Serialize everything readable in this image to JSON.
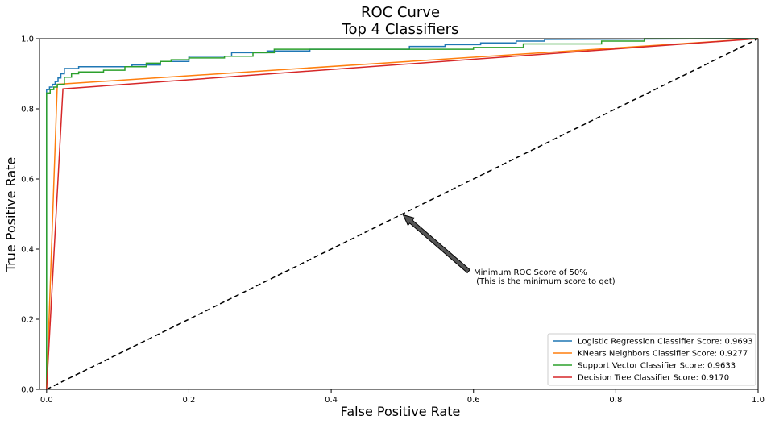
{
  "chart_data": {
    "type": "line",
    "title": [
      "ROC Curve",
      "Top 4 Classifiers"
    ],
    "xlabel": "False Positive Rate",
    "ylabel": "True Positive Rate",
    "xlim": [
      -0.01,
      1.0
    ],
    "ylim": [
      0.0,
      1.0
    ],
    "xticks": [
      0.0,
      0.2,
      0.4,
      0.6,
      0.8,
      1.0
    ],
    "yticks": [
      0.0,
      0.2,
      0.4,
      0.6,
      0.8,
      1.0
    ],
    "xtick_labels": [
      "0.0",
      "0.2",
      "0.4",
      "0.6",
      "0.8",
      "1.0"
    ],
    "ytick_labels": [
      "0.0",
      "0.2",
      "0.4",
      "0.6",
      "0.8",
      "1.0"
    ],
    "grid": false,
    "legend_position": "lower-right",
    "series": [
      {
        "name": "Logistic Regression Classifier Score: 0.9693",
        "color": "#1f77b4",
        "x": [
          0,
          0,
          0.004,
          0.004,
          0.008,
          0.008,
          0.012,
          0.012,
          0.016,
          0.016,
          0.02,
          0.02,
          0.025,
          0.025,
          0.045,
          0.045,
          0.12,
          0.12,
          0.16,
          0.16,
          0.2,
          0.2,
          0.26,
          0.26,
          0.31,
          0.31,
          0.37,
          0.37,
          0.51,
          0.51,
          0.56,
          0.56,
          0.61,
          0.61,
          0.66,
          0.66,
          0.7,
          0.7,
          1.0
        ],
        "y": [
          0,
          0.855,
          0.855,
          0.862,
          0.862,
          0.87,
          0.87,
          0.878,
          0.878,
          0.888,
          0.888,
          0.9,
          0.9,
          0.915,
          0.915,
          0.92,
          0.92,
          0.925,
          0.925,
          0.935,
          0.935,
          0.95,
          0.95,
          0.96,
          0.96,
          0.965,
          0.965,
          0.97,
          0.97,
          0.978,
          0.978,
          0.983,
          0.983,
          0.988,
          0.988,
          0.993,
          0.993,
          0.998,
          1.0
        ]
      },
      {
        "name": "KNears Neighbors Classifier Score: 0.9277",
        "color": "#ff7f0e",
        "x": [
          0,
          0.015,
          1.0
        ],
        "y": [
          0,
          0.87,
          1.0
        ]
      },
      {
        "name": "Support Vector Classifier Score: 0.9633",
        "color": "#2ca02c",
        "x": [
          0,
          0,
          0.005,
          0.005,
          0.01,
          0.01,
          0.015,
          0.015,
          0.025,
          0.025,
          0.035,
          0.035,
          0.045,
          0.045,
          0.08,
          0.08,
          0.11,
          0.11,
          0.14,
          0.14,
          0.16,
          0.16,
          0.175,
          0.175,
          0.2,
          0.2,
          0.25,
          0.25,
          0.29,
          0.29,
          0.32,
          0.32,
          0.6,
          0.6,
          0.67,
          0.67,
          0.78,
          0.78,
          0.84,
          0.84,
          1.0
        ],
        "y": [
          0,
          0.845,
          0.845,
          0.855,
          0.855,
          0.862,
          0.862,
          0.87,
          0.87,
          0.89,
          0.89,
          0.9,
          0.9,
          0.905,
          0.905,
          0.91,
          0.91,
          0.92,
          0.92,
          0.93,
          0.93,
          0.935,
          0.935,
          0.94,
          0.94,
          0.945,
          0.945,
          0.95,
          0.95,
          0.96,
          0.96,
          0.97,
          0.97,
          0.975,
          0.975,
          0.985,
          0.985,
          0.993,
          0.993,
          1.0,
          1.0
        ]
      },
      {
        "name": "Decision Tree Classifier Score: 0.9170",
        "color": "#d62728",
        "x": [
          0,
          0.023,
          1.0
        ],
        "y": [
          0,
          0.857,
          1.0
        ]
      }
    ],
    "reference_line": {
      "x": [
        0,
        1
      ],
      "y": [
        0,
        1
      ],
      "color": "#000000",
      "style": "dashed"
    },
    "annotation": {
      "text_lines": [
        "Minimum ROC Score of 50%",
        " (This is the minimum score to get)"
      ],
      "xy": [
        0.5,
        0.5
      ],
      "xytext": [
        0.6,
        0.3
      ]
    }
  }
}
